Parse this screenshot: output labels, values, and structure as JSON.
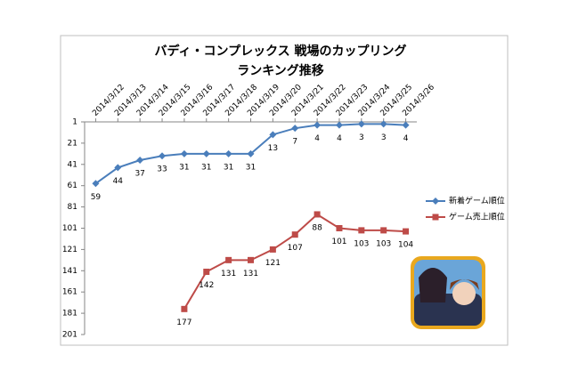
{
  "chart_data": {
    "type": "line",
    "title": [
      "バディ・コンプレックス 戦場のカップリング",
      "ランキング推移"
    ],
    "categories": [
      "2014/3/12",
      "2014/3/13",
      "2014/3/14",
      "2014/3/15",
      "2014/3/16",
      "2014/3/17",
      "2014/3/18",
      "2014/3/19",
      "2014/3/20",
      "2014/3/21",
      "2014/3/22",
      "2014/3/23",
      "2014/3/24",
      "2014/3/25",
      "2014/3/26"
    ],
    "series": [
      {
        "name": "新着ゲーム順位",
        "color": "#4a7ebb",
        "marker": "diamond",
        "values": [
          59,
          44,
          37,
          33,
          31,
          31,
          31,
          31,
          13,
          7,
          4,
          4,
          3,
          3,
          4
        ]
      },
      {
        "name": "ゲーム売上順位",
        "color": "#be4b48",
        "marker": "square",
        "values": [
          null,
          null,
          null,
          null,
          177,
          142,
          131,
          131,
          121,
          107,
          88,
          101,
          103,
          103,
          104
        ]
      }
    ],
    "ylim": [
      1,
      201
    ],
    "y_reversed": true,
    "yticks": [
      1,
      21,
      41,
      61,
      81,
      101,
      121,
      141,
      161,
      181,
      201
    ],
    "data_labels": true,
    "legend": "right"
  }
}
